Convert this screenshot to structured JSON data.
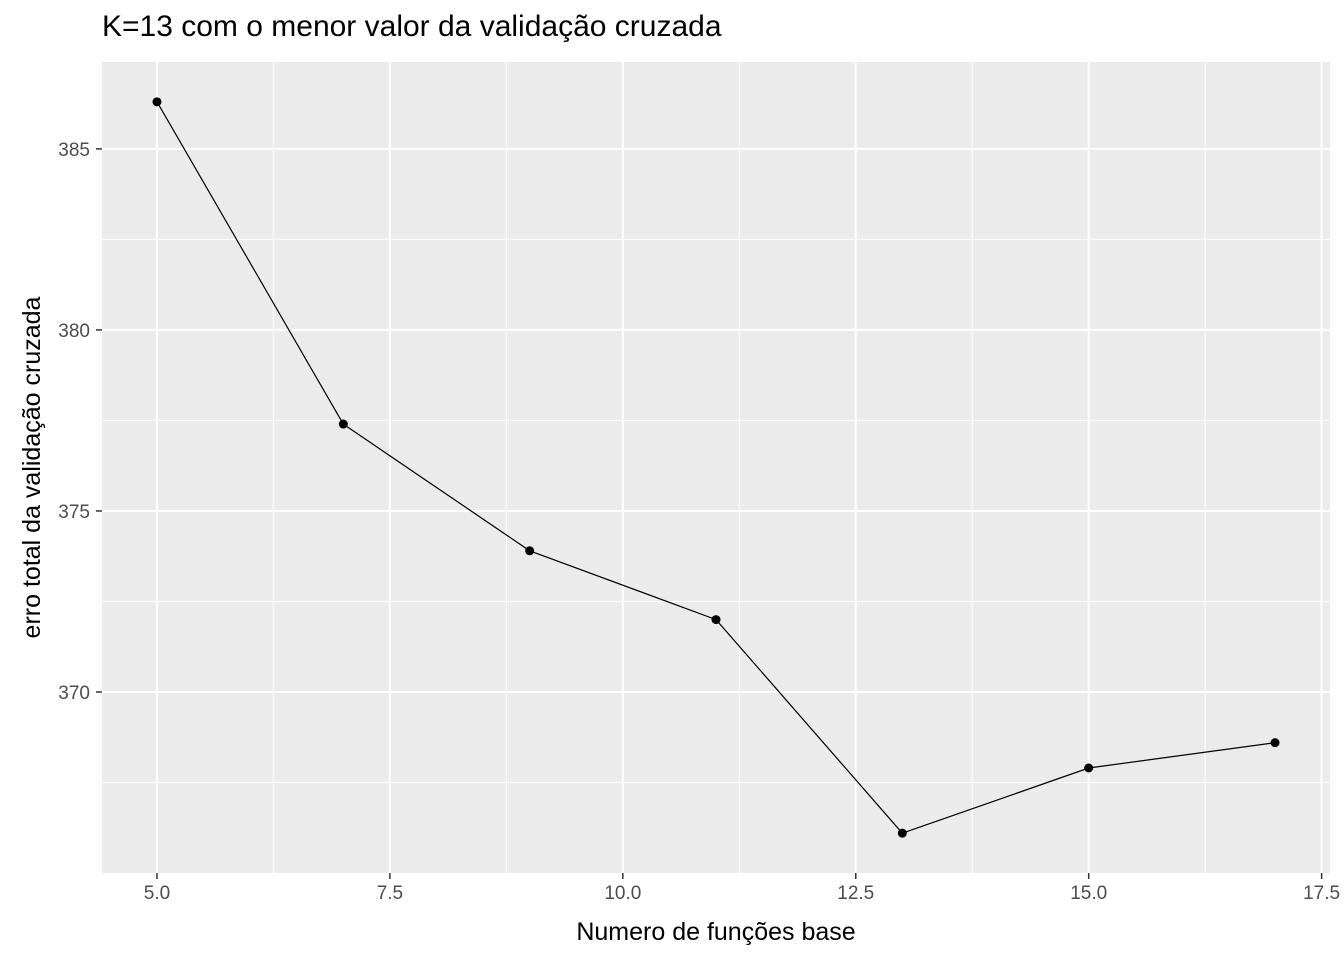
{
  "chart_data": {
    "type": "line",
    "title": "K=13 com o menor valor da validação cruzada",
    "xlabel": "Numero de funções base",
    "ylabel": "erro total da validação cruzada",
    "x": [
      5,
      7,
      9,
      11,
      13,
      15,
      17
    ],
    "y": [
      386.3,
      377.4,
      373.9,
      372.0,
      366.1,
      367.9,
      368.6
    ],
    "xlim": [
      4.41,
      17.59
    ],
    "ylim": [
      365.0,
      387.4
    ],
    "xticks": [
      5.0,
      7.5,
      10.0,
      12.5,
      15.0,
      17.5
    ],
    "xtick_labels": [
      "5.0",
      "7.5",
      "10.0",
      "12.5",
      "15.0",
      "17.5"
    ],
    "yticks": [
      370,
      375,
      380,
      385
    ],
    "ytick_labels": [
      "370",
      "375",
      "380",
      "385"
    ],
    "grid": true,
    "legend": "none",
    "colors": {
      "panel": "#ebebeb",
      "grid": "#ffffff",
      "line": "#000000",
      "point": "#000000"
    }
  }
}
